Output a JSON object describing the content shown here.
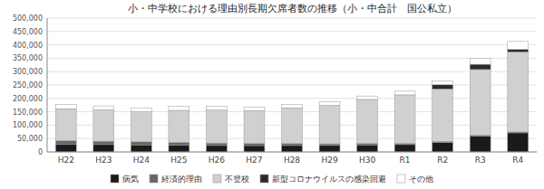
{
  "chart_data": {
    "type": "bar",
    "stacked": true,
    "title": "小・中学校における理由別長期欠席者数の推移（小・中合計　国公私立）",
    "categories": [
      "H22",
      "H23",
      "H24",
      "H25",
      "H26",
      "H27",
      "H28",
      "H29",
      "H30",
      "R1",
      "R2",
      "R3",
      "R4"
    ],
    "series": [
      {
        "name": "病気",
        "color": "#1a1a1a",
        "values": [
          27718,
          27604,
          26441,
          25386,
          24047,
          23693,
          24049,
          24279,
          26328,
          27445,
          35032,
          59316,
          71208
        ]
      },
      {
        "name": "経済的理由",
        "color": "#666666",
        "values": [
          14010,
          12481,
          11231,
          10422,
          9217,
          8097,
          7084,
          6039,
          5267,
          4474,
          4305,
          3595,
          3356
        ]
      },
      {
        "name": "不登校",
        "color": "#d0d0d0",
        "values": [
          119891,
          117458,
          112689,
          119617,
          122902,
          122655,
          133683,
          144031,
          164528,
          181272,
          196127,
          244940,
          299048
        ]
      },
      {
        "name": "新型コロナウイルスの感染回避",
        "color": "#2a2a2a",
        "values": [
          0,
          0,
          0,
          0,
          0,
          0,
          0,
          0,
          0,
          0,
          15575,
          19605,
          9492
        ]
      },
      {
        "name": "その他",
        "color": "#ffffff",
        "values": [
          15247,
          14350,
          14638,
          14479,
          13814,
          13622,
          13169,
          13162,
          12874,
          13682,
          14186,
          22398,
          29645
        ]
      }
    ],
    "ylim": [
      0,
      500000
    ],
    "yticks": [
      0,
      {
        "value": 50000,
        "label": "50,000"
      },
      {
        "value": 100000,
        "label": "100,000"
      },
      {
        "value": 150000,
        "label": "150,000"
      },
      {
        "value": 200000,
        "label": "200,000"
      },
      {
        "value": 250000,
        "label": "250,000"
      },
      {
        "value": 300000,
        "label": "300,000"
      },
      {
        "value": 350000,
        "label": "350,000"
      },
      {
        "value": 400000,
        "label": "400,000"
      },
      {
        "value": 450000,
        "label": "450,000"
      },
      {
        "value": 500000,
        "label": "500,000"
      }
    ],
    "grid": true,
    "legend": "bottom"
  }
}
